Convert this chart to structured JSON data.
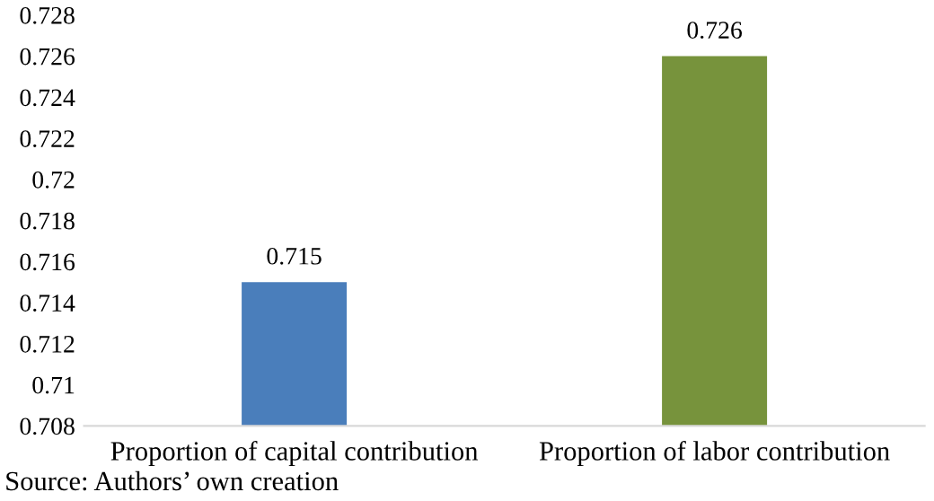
{
  "chart_data": {
    "type": "bar",
    "categories": [
      "Proportion of capital contribution",
      "Proportion of labor contribution"
    ],
    "values": [
      0.715,
      0.726
    ],
    "colors": [
      "#4a7ebb",
      "#77933c"
    ],
    "ylim": [
      0.708,
      0.728
    ],
    "yticks": [
      0.708,
      0.71,
      0.712,
      0.714,
      0.716,
      0.718,
      0.72,
      0.722,
      0.724,
      0.726,
      0.728
    ],
    "data_labels": true,
    "grid": false,
    "annotations": [
      "Source: Authors’ own creation"
    ]
  }
}
